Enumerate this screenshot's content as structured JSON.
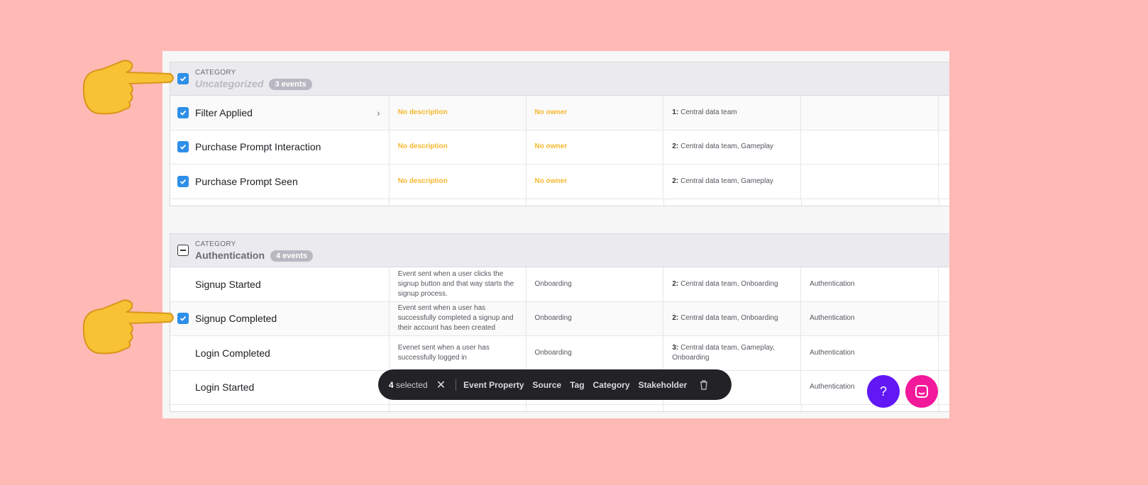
{
  "groups": [
    {
      "category_label": "CATEGORY",
      "name": "Uncategorized",
      "count": "3 events",
      "checkbox": "checked",
      "rows": [
        {
          "name": "Filter Applied",
          "checked": true,
          "description": "No description",
          "owner": "No owner",
          "stakeholders_count": "1:",
          "stakeholders": "Central data team",
          "category": ""
        },
        {
          "name": "Purchase Prompt Interaction",
          "checked": true,
          "description": "No description",
          "owner": "No owner",
          "stakeholders_count": "2:",
          "stakeholders": "Central data team, Gameplay",
          "category": ""
        },
        {
          "name": "Purchase Prompt Seen",
          "checked": true,
          "description": "No description",
          "owner": "No owner",
          "stakeholders_count": "2:",
          "stakeholders": "Central data team, Gameplay",
          "category": ""
        }
      ]
    },
    {
      "category_label": "CATEGORY",
      "name": "Authentication",
      "count": "4 events",
      "checkbox": "indeterminate",
      "rows": [
        {
          "name": "Signup Started",
          "checked": false,
          "description": "Event sent when a user clicks the signup button and that way starts the signup process.",
          "owner": "Onboarding",
          "stakeholders_count": "2:",
          "stakeholders": "Central data team, Onboarding",
          "category": "Authentication"
        },
        {
          "name": "Signup Completed",
          "checked": true,
          "description": "Event sent when a user has successfully completed a signup and their account has been created",
          "owner": "Onboarding",
          "stakeholders_count": "2:",
          "stakeholders": "Central data team, Onboarding",
          "category": "Authentication"
        },
        {
          "name": "Login Completed",
          "checked": false,
          "description": "Evenet sent when a user has successfully logged in",
          "owner": "Onboarding",
          "stakeholders_count": "3:",
          "stakeholders": "Central data team, Gameplay, Onboarding",
          "category": "Authentication"
        },
        {
          "name": "Login Started",
          "checked": false,
          "description": "",
          "owner": "",
          "stakeholders_count": "",
          "stakeholders": "…m, Gameplay,",
          "category": "Authentication"
        }
      ]
    }
  ],
  "action_bar": {
    "count": "4",
    "selected_label": "selected",
    "actions": [
      "Event Property",
      "Source",
      "Tag",
      "Category",
      "Stakeholder"
    ]
  },
  "help_button": "?",
  "colors": {
    "background": "#ffbab6",
    "checkbox": "#2e8fe8",
    "warning": "#f5b82e",
    "help": "#6118f5",
    "chat": "#f2199a"
  }
}
